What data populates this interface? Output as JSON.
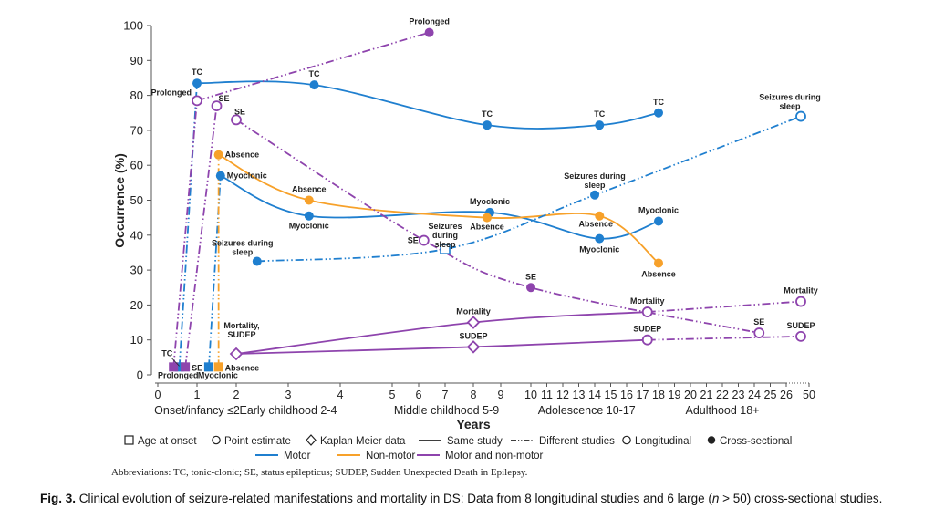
{
  "chart_data": {
    "type": "line",
    "title": "",
    "xlabel": "Years",
    "ylabel": "Occurrence (%)",
    "ylim": [
      0,
      100
    ],
    "yticks": [
      0,
      10,
      20,
      30,
      40,
      50,
      60,
      70,
      80,
      90,
      100
    ],
    "xticks": [
      "0",
      "1",
      "2",
      "3",
      "4",
      "5",
      "6",
      "7",
      "8",
      "9",
      "10",
      "11",
      "12",
      "13",
      "14",
      "15",
      "16",
      "17",
      "18",
      "19",
      "20",
      "21",
      "22",
      "23",
      "24",
      "25",
      "26",
      "50"
    ],
    "xtick_values": [
      0,
      1,
      2,
      3,
      4,
      5,
      6,
      7,
      8,
      9,
      10,
      11,
      12,
      13,
      14,
      15,
      16,
      17,
      18,
      19,
      20,
      21,
      22,
      23,
      24,
      25,
      26,
      50
    ],
    "age_groups": [
      {
        "label": "Onset/infancy ≤2",
        "from": 0,
        "to": 2
      },
      {
        "label": "Early childhood 2-4",
        "from": 2,
        "to": 4
      },
      {
        "label": "Middle childhood 5-9",
        "from": 5,
        "to": 9
      },
      {
        "label": "Adolescence 10-17",
        "from": 10,
        "to": 17
      },
      {
        "label": "Adulthood 18+",
        "from": 18,
        "to": 26
      }
    ],
    "colors": {
      "motor": "#1f7fcf",
      "non_motor": "#f7a12a",
      "motor_and_non_motor": "#8e44ad"
    },
    "series": [
      {
        "name": "TC",
        "category": "motor",
        "study": "same",
        "design": "cross-sectional",
        "marker": "point",
        "points": [
          [
            1,
            83.5,
            "TC"
          ],
          [
            3.5,
            83,
            "TC"
          ],
          [
            8.5,
            71.5,
            "TC"
          ],
          [
            14.3,
            71.5,
            "TC"
          ],
          [
            18,
            75,
            "TC"
          ]
        ]
      },
      {
        "name": "Myoclonic",
        "category": "motor",
        "study": "same",
        "design": "cross-sectional",
        "marker": "point",
        "points": [
          [
            1.6,
            57,
            "Myoclonic"
          ],
          [
            3.4,
            45.5,
            "Myoclonic"
          ],
          [
            8.6,
            46.5,
            "Myoclonic"
          ],
          [
            14.3,
            39,
            "Myoclonic"
          ],
          [
            18,
            44,
            "Myoclonic"
          ]
        ]
      },
      {
        "name": "Absence",
        "category": "non_motor",
        "study": "same",
        "design": "cross-sectional",
        "marker": "point",
        "points": [
          [
            1.55,
            63,
            "Absence"
          ],
          [
            3.4,
            50,
            "Absence"
          ],
          [
            8.5,
            45,
            "Absence"
          ],
          [
            14.3,
            45.5,
            "Absence"
          ],
          [
            18,
            32,
            "Absence"
          ]
        ]
      },
      {
        "name": "Seizures during sleep",
        "category": "motor",
        "study": "different",
        "design": "mixed",
        "marker": "point",
        "points": [
          [
            2.4,
            32.5,
            "Seizures during sleep",
            "filled"
          ],
          [
            7,
            36,
            "Seizures during sleep",
            "square-open"
          ],
          [
            14,
            51.5,
            "Seizures during sleep",
            "filled"
          ],
          [
            27,
            74,
            "Seizures during sleep",
            "open"
          ]
        ]
      },
      {
        "name": "Prolonged",
        "category": "motor_and_non_motor",
        "study": "different",
        "design": "mixed",
        "marker": "point",
        "points": [
          [
            1,
            78.5,
            "Prolonged",
            "open"
          ],
          [
            6.4,
            98,
            "Prolonged",
            "filled"
          ]
        ]
      },
      {
        "name": "SE (early)",
        "category": "motor_and_non_motor",
        "study": "different",
        "design": "longitudinal",
        "marker": "point",
        "points": [
          [
            1.5,
            77,
            "SE",
            "open"
          ]
        ]
      },
      {
        "name": "SE",
        "category": "motor_and_non_motor",
        "study": "different",
        "design": "mixed",
        "marker": "point",
        "points": [
          [
            2,
            73,
            "SE",
            "open"
          ],
          [
            6.2,
            38.5,
            "SE",
            "open"
          ],
          [
            10,
            25,
            "SE",
            "filled"
          ],
          [
            24.3,
            12,
            "SE",
            "open"
          ]
        ]
      },
      {
        "name": "Mortality",
        "category": "motor_and_non_motor",
        "study": "same+different",
        "design": "longitudinal",
        "marker": "kaplan-meier",
        "points": [
          [
            2,
            6,
            "Mortality, SUDEP",
            "diamond"
          ],
          [
            8,
            15,
            "Mortality",
            "diamond"
          ],
          [
            17.3,
            18,
            "Mortality",
            "open"
          ],
          [
            27,
            21,
            "Mortality",
            "open"
          ]
        ]
      },
      {
        "name": "SUDEP",
        "category": "motor_and_non_motor",
        "study": "same+different",
        "design": "longitudinal",
        "marker": "kaplan-meier",
        "points": [
          [
            2,
            6,
            "",
            "diamond"
          ],
          [
            8,
            8,
            "SUDEP",
            "diamond"
          ],
          [
            17.3,
            10,
            "SUDEP",
            "open"
          ],
          [
            27,
            11,
            "SUDEP",
            "open"
          ]
        ]
      }
    ],
    "age_at_onset": [
      {
        "label": "TC",
        "x": 0.55,
        "y": 2,
        "category": "motor"
      },
      {
        "label": "Prolonged",
        "x": 0.4,
        "y": 2,
        "category": "motor_and_non_motor"
      },
      {
        "label": "SE",
        "x": 0.7,
        "y": 2,
        "category": "motor_and_non_motor"
      },
      {
        "label": "Myoclonic",
        "x": 1.3,
        "y": 2,
        "category": "motor"
      },
      {
        "label": "Absence",
        "x": 1.55,
        "y": 2,
        "category": "non_motor"
      }
    ],
    "legend": {
      "placement": "bottom",
      "row1": [
        "Age at onset",
        "Point estimate",
        "Kaplan Meier data",
        "Same study",
        "Different studies",
        "Longitudinal",
        "Cross-sectional"
      ],
      "row2": [
        "Motor",
        "Non-motor",
        "Motor and non-motor"
      ]
    }
  },
  "abbreviations": "Abbreviations: TC, tonic-clonic; SE, status epilepticus; SUDEP, Sudden Unexpected Death in Epilepsy.",
  "caption": {
    "label": "Fig. 3.",
    "text_before": " Clinical evolution of seizure-related manifestations and mortality in DS: Data from 8 longitudinal studies and 6 large (",
    "italic": "n",
    "text_after": " > 50) cross-sectional studies."
  }
}
